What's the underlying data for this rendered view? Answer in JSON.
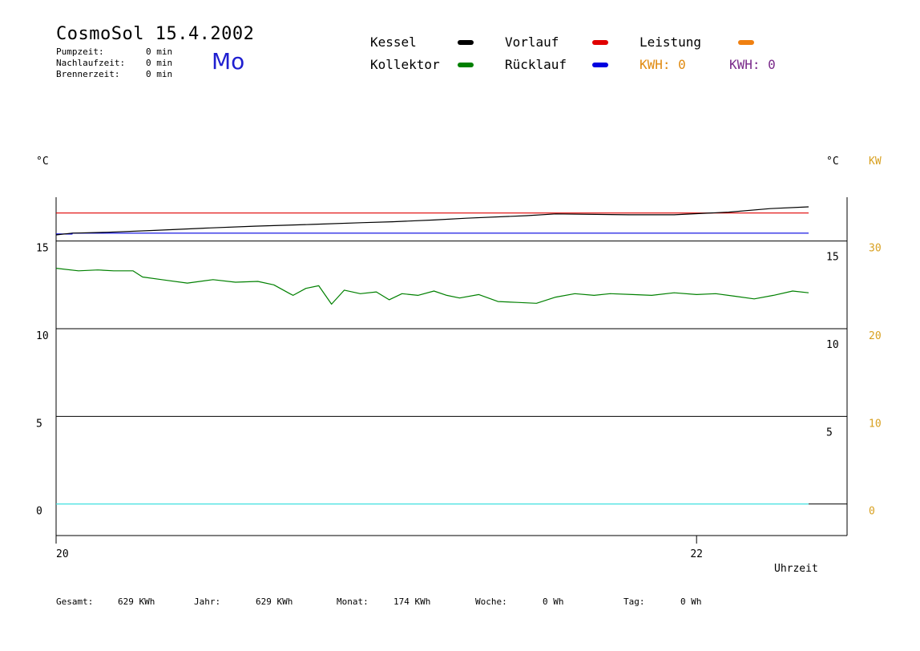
{
  "header": {
    "title": "CosmoSol 15.4.2002",
    "day": "Mo",
    "info": [
      {
        "label": "Pumpzeit:",
        "value": "0 min"
      },
      {
        "label": "Nachlaufzeit:",
        "value": "0 min"
      },
      {
        "label": "Brennerzeit:",
        "value": "0 min"
      }
    ]
  },
  "legend": {
    "items": [
      {
        "label": "Kessel",
        "color": "#000000"
      },
      {
        "label": "Vorlauf",
        "color": "#e00000"
      },
      {
        "label": "Leistung",
        "color": "#f08010"
      },
      {
        "label": "Kollektor",
        "color": "#008000"
      },
      {
        "label": "Rücklauf",
        "color": "#0000e0"
      }
    ],
    "kwh_orange": {
      "text": "KWH: 0",
      "color": "#e08a10"
    },
    "kwh_purple": {
      "text": "KWH: 0",
      "color": "#7a2a8a"
    }
  },
  "footer": {
    "items": [
      {
        "label": "Gesamt:",
        "value": "629 KWh"
      },
      {
        "label": "Jahr:",
        "value": "629 KWh"
      },
      {
        "label": "Monat:",
        "value": "174 KWh"
      },
      {
        "label": "Woche:",
        "value": "0 Wh"
      },
      {
        "label": "Tag:",
        "value": "0 Wh"
      }
    ]
  },
  "chart_data": {
    "type": "line",
    "left_unit": "°C",
    "right_unit": "°C",
    "power_unit": "KW",
    "xlabel": "Uhrzeit",
    "x_ticks": [
      {
        "value": 20,
        "label": "20"
      },
      {
        "value": 22,
        "label": "22"
      }
    ],
    "xlim": [
      20,
      22.47
    ],
    "x_end": 22.35,
    "ylim": [
      -1.8,
      17.5
    ],
    "y_ticks_left": [
      0,
      5,
      10,
      15
    ],
    "y_ticks_right": [
      5,
      10,
      15
    ],
    "y_ticks_power": [
      0,
      10,
      20,
      30
    ],
    "power_scale": 2,
    "gridlines": [
      0,
      5,
      10,
      15
    ],
    "series": [
      {
        "name": "Vorlauf",
        "color": "#e00000",
        "x": [
          20,
          22.35
        ],
        "y": [
          16.6,
          16.6
        ]
      },
      {
        "name": "Rücklauf",
        "color": "#0000e0",
        "x": [
          20,
          20.05,
          20.05,
          22.35
        ],
        "y": [
          15.4,
          15.4,
          15.45,
          15.45
        ]
      },
      {
        "name": "Kessel",
        "color": "#000000",
        "x": [
          20,
          20.05,
          20.16,
          20.3,
          20.48,
          20.62,
          20.8,
          20.96,
          21.05,
          21.18,
          21.28,
          21.47,
          21.56,
          21.79,
          21.93,
          22.1,
          22.23,
          22.35
        ],
        "y": [
          15.35,
          15.45,
          15.5,
          15.6,
          15.75,
          15.85,
          15.95,
          16.05,
          16.1,
          16.2,
          16.3,
          16.45,
          16.55,
          16.5,
          16.5,
          16.65,
          16.85,
          16.95
        ]
      },
      {
        "name": "Kollektor",
        "color": "#008000",
        "x": [
          20,
          20.07,
          20.13,
          20.18,
          20.24,
          20.27,
          20.33,
          20.41,
          20.49,
          20.56,
          20.63,
          20.68,
          20.73,
          20.74,
          20.78,
          20.82,
          20.86,
          20.9,
          20.95,
          21.0,
          21.04,
          21.08,
          21.13,
          21.18,
          21.22,
          21.26,
          21.32,
          21.38,
          21.44,
          21.5,
          21.56,
          21.62,
          21.68,
          21.73,
          21.8,
          21.86,
          21.93,
          22.0,
          22.06,
          22.12,
          22.18,
          22.24,
          22.3,
          22.35
        ],
        "y": [
          13.45,
          13.3,
          13.35,
          13.3,
          13.3,
          12.95,
          12.8,
          12.6,
          12.8,
          12.65,
          12.7,
          12.5,
          12.0,
          11.9,
          12.3,
          12.45,
          11.4,
          12.2,
          12.0,
          12.1,
          11.65,
          12.0,
          11.9,
          12.15,
          11.9,
          11.75,
          11.95,
          11.55,
          11.5,
          11.45,
          11.8,
          12.0,
          11.9,
          12.0,
          11.95,
          11.9,
          12.05,
          11.95,
          12.0,
          11.85,
          11.7,
          11.9,
          12.15,
          12.05
        ]
      },
      {
        "name": "Leistung",
        "color": "#40e0e0",
        "x": [
          20,
          22.35
        ],
        "y": [
          0,
          0
        ]
      }
    ]
  }
}
